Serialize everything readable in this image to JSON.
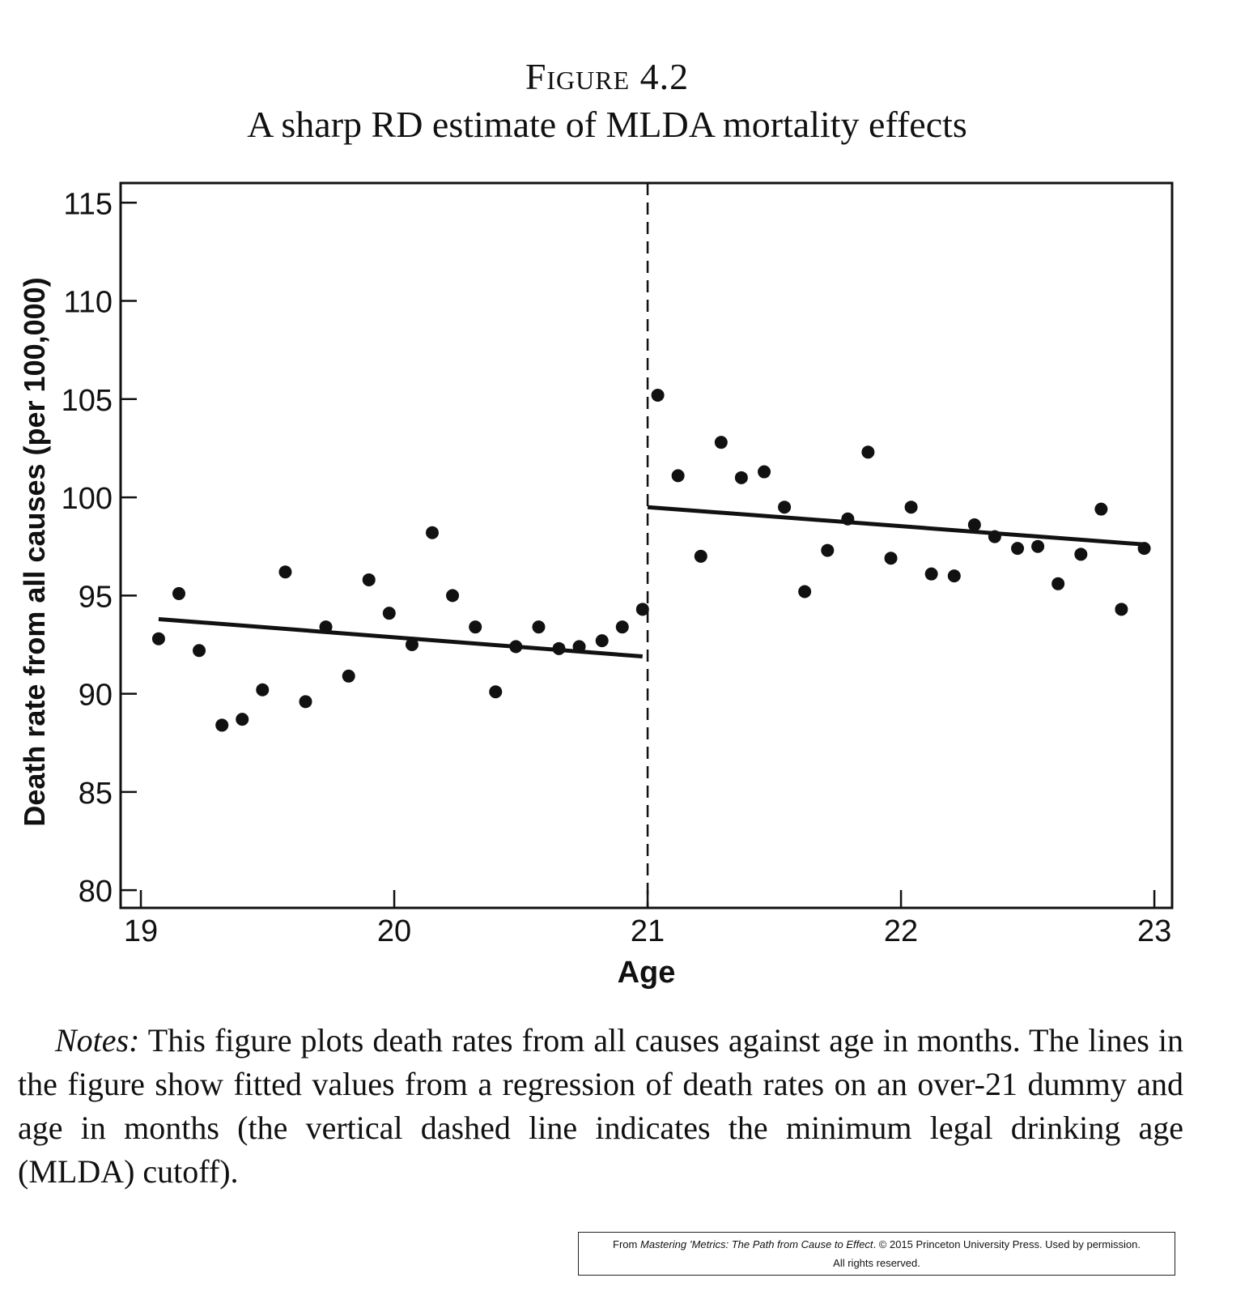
{
  "figure": {
    "label": "Figure 4.2",
    "title": "A sharp RD estimate of MLDA mortality effects"
  },
  "chart_data": {
    "type": "scatter",
    "xlabel": "Age",
    "ylabel": "Death rate from all causes (per 100,000)",
    "xlim": [
      18.92,
      23.07
    ],
    "ylim": [
      79.1,
      116.0
    ],
    "x_ticks": [
      19,
      20,
      21,
      22,
      23
    ],
    "y_ticks": [
      80,
      85,
      90,
      95,
      100,
      105,
      110,
      115
    ],
    "grid": false,
    "legend": "none",
    "cutoff_x": 21,
    "cutoff_style": "dashed",
    "series": [
      {
        "points": [
          {
            "x": 19.07,
            "y": 92.8
          },
          {
            "x": 19.15,
            "y": 95.1
          },
          {
            "x": 19.23,
            "y": 92.2
          },
          {
            "x": 19.32,
            "y": 88.4
          },
          {
            "x": 19.4,
            "y": 88.7
          },
          {
            "x": 19.48,
            "y": 90.2
          },
          {
            "x": 19.57,
            "y": 96.2
          },
          {
            "x": 19.65,
            "y": 89.6
          },
          {
            "x": 19.73,
            "y": 93.4
          },
          {
            "x": 19.82,
            "y": 90.9
          },
          {
            "x": 19.9,
            "y": 95.8
          },
          {
            "x": 19.98,
            "y": 94.1
          },
          {
            "x": 20.07,
            "y": 92.5
          },
          {
            "x": 20.15,
            "y": 98.2
          },
          {
            "x": 20.23,
            "y": 95.0
          },
          {
            "x": 20.32,
            "y": 93.4
          },
          {
            "x": 20.4,
            "y": 90.1
          },
          {
            "x": 20.48,
            "y": 92.4
          },
          {
            "x": 20.57,
            "y": 93.4
          },
          {
            "x": 20.65,
            "y": 92.3
          },
          {
            "x": 20.73,
            "y": 92.4
          },
          {
            "x": 20.82,
            "y": 92.7
          },
          {
            "x": 20.9,
            "y": 93.4
          },
          {
            "x": 20.98,
            "y": 94.3
          },
          {
            "x": 21.04,
            "y": 105.2
          },
          {
            "x": 21.12,
            "y": 101.1
          },
          {
            "x": 21.21,
            "y": 97.0
          },
          {
            "x": 21.29,
            "y": 102.8
          },
          {
            "x": 21.37,
            "y": 101.0
          },
          {
            "x": 21.46,
            "y": 101.3
          },
          {
            "x": 21.54,
            "y": 99.5
          },
          {
            "x": 21.62,
            "y": 95.2
          },
          {
            "x": 21.71,
            "y": 97.3
          },
          {
            "x": 21.79,
            "y": 98.9
          },
          {
            "x": 21.87,
            "y": 102.3
          },
          {
            "x": 21.96,
            "y": 96.9
          },
          {
            "x": 22.04,
            "y": 99.5
          },
          {
            "x": 22.12,
            "y": 96.1
          },
          {
            "x": 22.21,
            "y": 96.0
          },
          {
            "x": 22.29,
            "y": 98.6
          },
          {
            "x": 22.37,
            "y": 98.0
          },
          {
            "x": 22.46,
            "y": 97.4
          },
          {
            "x": 22.54,
            "y": 97.5
          },
          {
            "x": 22.62,
            "y": 95.6
          },
          {
            "x": 22.71,
            "y": 97.1
          },
          {
            "x": 22.79,
            "y": 99.4
          },
          {
            "x": 22.87,
            "y": 94.3
          },
          {
            "x": 22.96,
            "y": 97.4
          }
        ]
      }
    ],
    "fitted_lines": [
      {
        "x": [
          19.07,
          20.98
        ],
        "y": [
          93.8,
          91.9
        ]
      },
      {
        "x": [
          21.0,
          22.96
        ],
        "y": [
          99.5,
          97.6
        ]
      }
    ]
  },
  "notes": {
    "lead": "Notes:",
    "text": "This figure plots death rates from all causes against age in months. The lines in the figure show fitted values from a regression of death rates on an over-21 dummy and age in months (the vertical dashed line indicates the minimum legal drinking age (MLDA) cutoff)."
  },
  "credit": {
    "prefix": "From",
    "book": "Mastering ’Metrics: The Path from Cause to Effect",
    "suffix": ". © 2015 Princeton University Press. Used by permission.",
    "line2": "All rights reserved."
  }
}
